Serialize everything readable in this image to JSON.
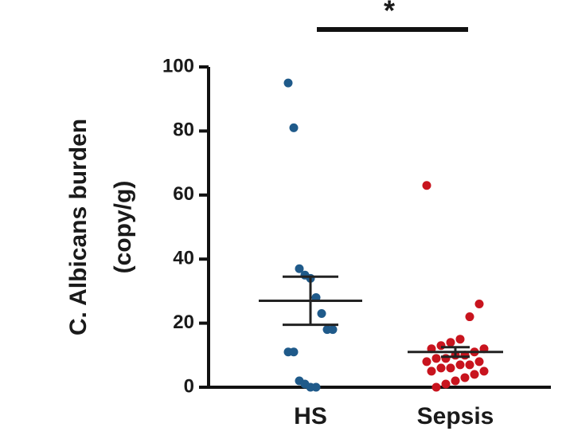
{
  "chart_data": {
    "type": "dotplot",
    "y_label": [
      "C. Albicans burden",
      "(copy/g)"
    ],
    "categories": [
      "HS",
      "Sepsis"
    ],
    "groups": [
      {
        "color": "#1f5a8a",
        "values": [
          95,
          81,
          37,
          35,
          34,
          28,
          23,
          18,
          18,
          11,
          11,
          2,
          1,
          0,
          0
        ],
        "mean": 27,
        "sem": 7.5
      },
      {
        "color": "#c8141e",
        "values": [
          63,
          26,
          22,
          15,
          14,
          13,
          12,
          12,
          11,
          10,
          10,
          9,
          9,
          8,
          8,
          7,
          7,
          6,
          6,
          5,
          5,
          4,
          3,
          2,
          1,
          0
        ],
        "mean": 11,
        "sem": 1.5
      }
    ],
    "ylim": [
      0,
      100
    ],
    "yticks": [
      0,
      20,
      40,
      60,
      80,
      100
    ],
    "significance": "*"
  }
}
